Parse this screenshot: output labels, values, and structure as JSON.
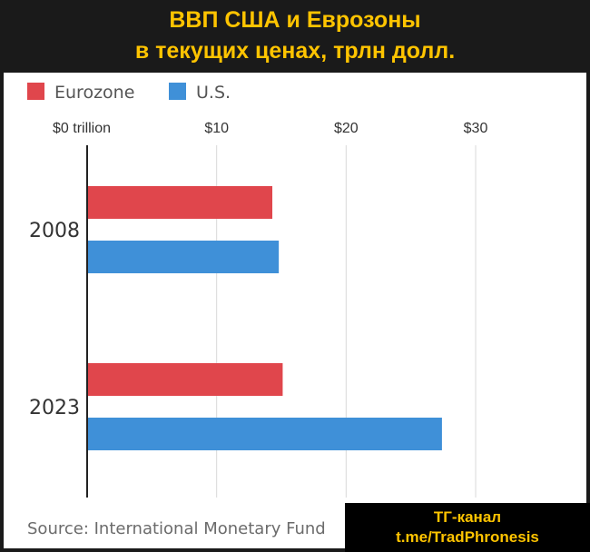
{
  "header": {
    "title_line_1": "ВВП США и Еврозоны",
    "title_line_2": "в текущих ценах, трлн долл."
  },
  "colors": {
    "title": "#ffc400",
    "eurozone": "#e0464c",
    "us": "#3f90d8",
    "gridline": "#d9d9d9",
    "axis": "#222222"
  },
  "chart_data": {
    "type": "bar",
    "orientation": "horizontal",
    "categories": [
      "2008",
      "2023"
    ],
    "series": [
      {
        "name": "Eurozone",
        "color_key": "eurozone",
        "values": [
          14.3,
          15.1
        ]
      },
      {
        "name": "U.S.",
        "color_key": "us",
        "values": [
          14.8,
          27.4
        ]
      }
    ],
    "xlim": [
      0,
      30
    ],
    "ticks": [
      {
        "value": 0,
        "label": "$0 trillion"
      },
      {
        "value": 10,
        "label": "$10"
      },
      {
        "value": 20,
        "label": "$20"
      },
      {
        "value": 30,
        "label": "$30"
      }
    ],
    "legend_position": "top-left",
    "grid": true,
    "units": "trillion USD"
  },
  "footer": {
    "source": "Source: International Monetary Fund"
  },
  "badge": {
    "line_1": "ТГ-канал",
    "line_2": "t.me/TradPhronesis"
  }
}
